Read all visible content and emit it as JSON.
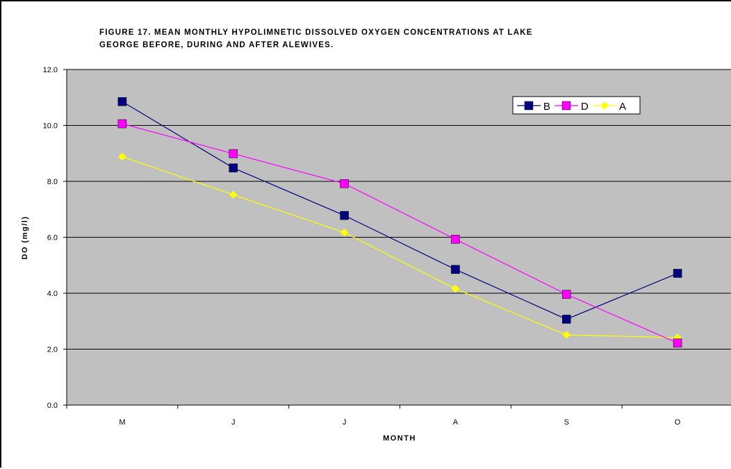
{
  "chart_data": {
    "type": "line",
    "title_lines": [
      "FIGURE 17.  MEAN MONTHLY HYPOLIMNETIC DISSOLVED OXYGEN CONCENTRATIONS AT LAKE",
      "GEORGE BEFORE, DURING AND AFTER ALEWIVES."
    ],
    "xlabel": "MONTH",
    "ylabel": "DO (mg/l)",
    "categories": [
      "M",
      "J",
      "J",
      "A",
      "S",
      "O"
    ],
    "ylim": [
      0,
      12
    ],
    "yticks": [
      "0.0",
      "2.0",
      "4.0",
      "6.0",
      "8.0",
      "10.0",
      "12.0"
    ],
    "grid": true,
    "plot_background": "#c0c0c0",
    "legend_position": "top-right",
    "series": [
      {
        "name": "B",
        "color": "#000080",
        "marker": "square",
        "values": [
          10.85,
          8.48,
          6.78,
          4.85,
          3.07,
          4.71
        ]
      },
      {
        "name": "D",
        "color": "#ff00ff",
        "marker": "square",
        "values": [
          10.06,
          8.99,
          7.92,
          5.93,
          3.96,
          2.22
        ]
      },
      {
        "name": "A",
        "color": "#ffff00",
        "marker": "diamond",
        "values": [
          8.88,
          7.52,
          6.17,
          4.16,
          2.51,
          2.41
        ]
      }
    ]
  }
}
